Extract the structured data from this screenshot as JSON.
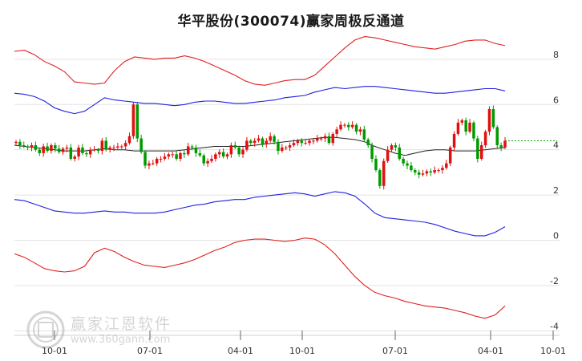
{
  "chart_data": {
    "type": "line",
    "title": "华平股份(300074)赢家周极反通道",
    "x_ticks": [
      "10-01",
      "07-01",
      "04-01",
      "10-01",
      "07-01",
      "04-01",
      "10-01"
    ],
    "y_ticks": [
      "8",
      "6",
      "4",
      "2",
      "0",
      "-2",
      "-4"
    ],
    "ylim": [
      -4.2,
      9.2
    ],
    "grid": "horizontal",
    "x_index_range": [
      0,
      340
    ],
    "candles": [
      [
        4.3,
        4.4,
        4.35
      ],
      [
        4.35,
        4.6,
        4.2
      ],
      [
        4.2,
        4.3,
        4.15
      ],
      [
        4.15,
        4.2,
        4.1
      ],
      [
        4.1,
        4.25,
        4.2
      ],
      [
        4.2,
        4.4,
        4.0
      ],
      [
        4.0,
        4.1,
        3.85
      ],
      [
        3.85,
        4.0,
        4.15
      ],
      [
        4.15,
        4.1,
        3.95
      ],
      [
        3.95,
        3.9,
        4.2
      ],
      [
        4.2,
        4.05,
        4.05
      ],
      [
        4.05,
        3.95,
        3.9
      ],
      [
        3.9,
        4.0,
        4.05
      ],
      [
        4.05,
        4.0,
        4.1
      ],
      [
        4.1,
        3.7,
        3.6
      ],
      [
        3.6,
        3.75,
        3.7
      ],
      [
        3.7,
        3.8,
        4.1
      ],
      [
        4.1,
        3.8,
        3.85
      ],
      [
        3.85,
        3.9,
        3.8
      ],
      [
        3.8,
        4.0,
        4.0
      ],
      [
        4.0,
        4.1,
        4.0
      ],
      [
        4.0,
        3.95,
        3.95
      ],
      [
        3.95,
        4.3,
        4.4
      ],
      [
        4.4,
        4.25,
        4.0
      ],
      [
        4.0,
        4.05,
        4.1
      ],
      [
        4.1,
        4.2,
        4.1
      ],
      [
        4.1,
        4.05,
        4.15
      ],
      [
        4.15,
        4.1,
        4.15
      ],
      [
        4.15,
        4.35,
        4.3
      ],
      [
        4.3,
        4.3,
        4.6
      ],
      [
        4.6,
        5.6,
        6.0
      ],
      [
        6.0,
        4.8,
        4.5
      ],
      [
        4.5,
        4.3,
        3.9
      ],
      [
        3.9,
        3.5,
        3.3
      ],
      [
        3.3,
        3.5,
        3.4
      ],
      [
        3.4,
        3.4,
        3.4
      ],
      [
        3.4,
        3.55,
        3.6
      ],
      [
        3.6,
        3.5,
        3.6
      ],
      [
        3.6,
        3.65,
        3.7
      ],
      [
        3.7,
        3.75,
        3.8
      ],
      [
        3.8,
        3.8,
        3.8
      ],
      [
        3.8,
        3.9,
        3.6
      ],
      [
        3.6,
        3.7,
        3.85
      ],
      [
        3.85,
        3.9,
        3.8
      ],
      [
        3.8,
        3.85,
        4.15
      ],
      [
        4.15,
        3.95,
        4.1
      ],
      [
        4.1,
        4.0,
        3.85
      ],
      [
        3.85,
        3.8,
        3.75
      ],
      [
        3.75,
        3.65,
        3.4
      ],
      [
        3.4,
        3.5,
        3.5
      ],
      [
        3.5,
        3.6,
        3.6
      ],
      [
        3.6,
        3.7,
        3.8
      ],
      [
        3.8,
        3.8,
        3.9
      ],
      [
        3.9,
        3.75,
        3.7
      ],
      [
        3.7,
        3.8,
        3.8
      ],
      [
        3.8,
        3.9,
        4.2
      ],
      [
        4.2,
        4.15,
        4.1
      ],
      [
        4.1,
        4.05,
        3.8
      ],
      [
        3.8,
        3.9,
        4.0
      ],
      [
        4.0,
        4.2,
        4.4
      ],
      [
        4.4,
        4.45,
        4.3
      ],
      [
        4.3,
        4.35,
        4.4
      ],
      [
        4.4,
        4.5,
        4.5
      ],
      [
        4.5,
        4.4,
        4.25
      ],
      [
        4.25,
        4.3,
        4.4
      ],
      [
        4.4,
        4.5,
        4.6
      ],
      [
        4.6,
        4.45,
        4.35
      ],
      [
        4.35,
        4.3,
        3.95
      ],
      [
        3.95,
        3.9,
        4.1
      ],
      [
        4.1,
        4.15,
        4.1
      ],
      [
        4.1,
        4.2,
        4.2
      ],
      [
        4.2,
        4.3,
        4.3
      ],
      [
        4.3,
        4.35,
        4.4
      ],
      [
        4.4,
        4.3,
        4.3
      ],
      [
        4.3,
        4.35,
        4.3
      ],
      [
        4.3,
        4.4,
        4.4
      ],
      [
        4.4,
        4.3,
        4.4
      ],
      [
        4.4,
        4.45,
        4.5
      ],
      [
        4.5,
        4.5,
        4.5
      ],
      [
        4.5,
        4.6,
        4.6
      ],
      [
        4.6,
        4.45,
        4.3
      ],
      [
        4.3,
        4.4,
        4.7
      ],
      [
        4.7,
        4.8,
        4.9
      ],
      [
        4.9,
        5.0,
        5.1
      ],
      [
        5.1,
        5.2,
        5.1
      ],
      [
        5.1,
        4.95,
        5.0
      ],
      [
        5.0,
        5.1,
        5.1
      ],
      [
        5.1,
        5.0,
        4.8
      ],
      [
        4.8,
        4.85,
        4.9
      ],
      [
        4.9,
        4.7,
        4.45
      ],
      [
        4.45,
        4.1,
        4.2
      ],
      [
        4.2,
        3.75,
        3.6
      ],
      [
        3.6,
        3.3,
        3.1
      ],
      [
        3.1,
        2.7,
        2.4
      ],
      [
        2.4,
        3.3,
        3.5
      ],
      [
        3.5,
        3.7,
        4.0
      ],
      [
        4.0,
        4.1,
        4.2
      ],
      [
        4.2,
        4.0,
        4.1
      ],
      [
        4.1,
        3.7,
        3.6
      ],
      [
        3.6,
        3.4,
        3.4
      ],
      [
        3.4,
        3.3,
        3.3
      ],
      [
        3.3,
        3.25,
        3.1
      ],
      [
        3.1,
        3.0,
        3.0
      ],
      [
        3.0,
        2.95,
        2.9
      ],
      [
        2.9,
        2.9,
        2.95
      ],
      [
        2.95,
        3.0,
        3.05
      ],
      [
        3.05,
        3.1,
        3.0
      ],
      [
        3.0,
        3.0,
        3.1
      ],
      [
        3.1,
        3.2,
        3.1
      ],
      [
        3.1,
        3.05,
        3.2
      ],
      [
        3.2,
        3.6,
        3.4
      ],
      [
        3.4,
        3.9,
        4.1
      ],
      [
        4.1,
        4.3,
        4.7
      ],
      [
        4.7,
        4.9,
        5.2
      ],
      [
        5.2,
        5.0,
        5.3
      ],
      [
        5.3,
        5.0,
        4.8
      ],
      [
        4.8,
        5.1,
        5.2
      ],
      [
        5.2,
        4.8,
        4.5
      ],
      [
        4.5,
        3.9,
        3.6
      ],
      [
        3.6,
        3.7,
        4.2
      ],
      [
        4.2,
        4.5,
        4.8
      ],
      [
        4.8,
        5.2,
        5.8
      ],
      [
        5.8,
        5.4,
        5.0
      ],
      [
        5.0,
        4.6,
        4.2
      ],
      [
        4.2,
        3.9,
        4.1
      ],
      [
        4.1,
        4.2,
        4.4
      ]
    ],
    "series": [
      {
        "color": "#e02020",
        "values": [
          8.35,
          8.4,
          8.2,
          7.9,
          7.7,
          7.45,
          7.0,
          6.95,
          6.9,
          6.95,
          7.5,
          7.9,
          8.1,
          8.05,
          8.0,
          8.05,
          8.05,
          8.15,
          8.05,
          7.9,
          7.7,
          7.5,
          7.3,
          7.05,
          6.9,
          6.85,
          6.95,
          7.05,
          7.1,
          7.1,
          7.3,
          7.7,
          8.1,
          8.5,
          8.85,
          9.0,
          8.95,
          8.85,
          8.75,
          8.65,
          8.55,
          8.5,
          8.45,
          8.55,
          8.65,
          8.8,
          8.85,
          8.85,
          8.7,
          8.6
        ]
      },
      {
        "color": "#2020e0",
        "values": [
          6.5,
          6.45,
          6.35,
          6.15,
          5.85,
          5.7,
          5.6,
          5.7,
          6.0,
          6.3,
          6.2,
          6.15,
          6.1,
          6.05,
          6.05,
          6.0,
          5.95,
          6.0,
          6.1,
          6.15,
          6.15,
          6.1,
          6.05,
          6.05,
          6.1,
          6.15,
          6.2,
          6.3,
          6.35,
          6.4,
          6.55,
          6.65,
          6.75,
          6.7,
          6.75,
          6.8,
          6.8,
          6.75,
          6.7,
          6.65,
          6.6,
          6.55,
          6.5,
          6.5,
          6.55,
          6.6,
          6.65,
          6.7,
          6.7,
          6.6
        ]
      },
      {
        "color": "#222222",
        "values": [
          4.2,
          4.15,
          4.1,
          4.05,
          4.0,
          3.95,
          3.95,
          3.95,
          4.0,
          4.05,
          4.0,
          4.0,
          3.95,
          3.95,
          3.95,
          3.95,
          3.95,
          4.0,
          4.05,
          4.1,
          4.15,
          4.15,
          4.15,
          4.15,
          4.2,
          4.25,
          4.3,
          4.35,
          4.4,
          4.45,
          4.5,
          4.55,
          4.55,
          4.5,
          4.45,
          4.35,
          4.15,
          4.0,
          3.85,
          3.75,
          3.85,
          3.95,
          4.0,
          4.0,
          3.95,
          3.95,
          3.95,
          4.0,
          4.05,
          4.1
        ]
      },
      {
        "color": "#2020e0",
        "values": [
          1.8,
          1.75,
          1.6,
          1.45,
          1.3,
          1.25,
          1.2,
          1.2,
          1.25,
          1.3,
          1.25,
          1.25,
          1.2,
          1.2,
          1.2,
          1.25,
          1.35,
          1.45,
          1.55,
          1.6,
          1.7,
          1.75,
          1.8,
          1.8,
          1.9,
          1.95,
          2.0,
          2.05,
          2.1,
          2.05,
          1.95,
          2.05,
          2.15,
          2.1,
          1.95,
          1.6,
          1.2,
          1.0,
          0.95,
          0.9,
          0.85,
          0.8,
          0.7,
          0.55,
          0.4,
          0.3,
          0.2,
          0.2,
          0.35,
          0.6
        ]
      },
      {
        "color": "#e02020",
        "values": [
          -0.6,
          -0.75,
          -1.0,
          -1.25,
          -1.35,
          -1.4,
          -1.35,
          -1.15,
          -0.55,
          -0.35,
          -0.5,
          -0.75,
          -0.95,
          -1.1,
          -1.15,
          -1.2,
          -1.1,
          -1.0,
          -0.85,
          -0.65,
          -0.45,
          -0.3,
          -0.1,
          0.0,
          0.05,
          0.05,
          0.0,
          -0.05,
          0.0,
          0.1,
          0.05,
          -0.2,
          -0.6,
          -1.1,
          -1.6,
          -2.0,
          -2.3,
          -2.45,
          -2.55,
          -2.7,
          -2.8,
          -2.9,
          -2.95,
          -3.0,
          -3.1,
          -3.2,
          -3.35,
          -3.45,
          -3.3,
          -2.9
        ]
      }
    ],
    "last_price_line": {
      "value": 4.4,
      "color": "#00aa00",
      "style": "dotted"
    }
  },
  "watermark": {
    "name": "赢家江恩软件",
    "url": "www.360gann.com"
  }
}
